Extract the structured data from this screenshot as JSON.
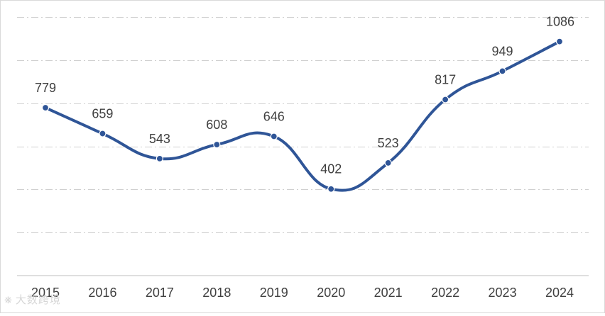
{
  "chart_data": {
    "type": "line",
    "categories": [
      "2015",
      "2016",
      "2017",
      "2018",
      "2019",
      "2020",
      "2021",
      "2022",
      "2023",
      "2024"
    ],
    "series": [
      {
        "values": [
          779,
          659,
          543,
          608,
          646,
          402,
          523,
          817,
          949,
          1086
        ]
      }
    ],
    "title": "",
    "xlabel": "",
    "ylabel": "",
    "ylim": [
      0,
      1200
    ],
    "grid": true,
    "grid_style": "dash-dot",
    "line_color": "#2f5597",
    "data_labels": true,
    "smooth": true
  },
  "watermark": {
    "text": "大数跨境",
    "icon": "logo-icon"
  }
}
